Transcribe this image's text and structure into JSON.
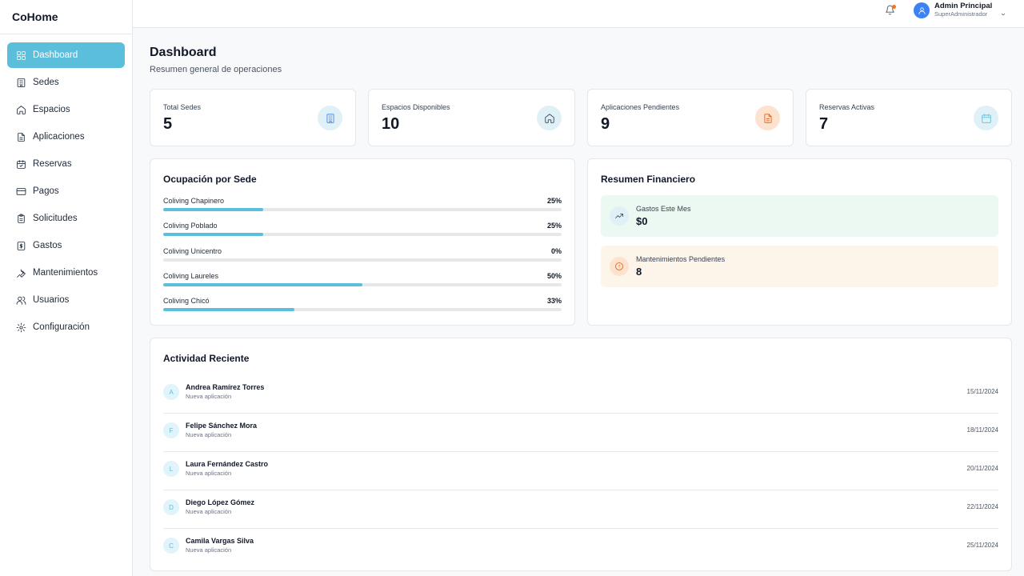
{
  "brand": "CoHome",
  "sidebar": {
    "items": [
      {
        "label": "Dashboard",
        "icon": "grid-icon",
        "active": true
      },
      {
        "label": "Sedes",
        "icon": "building-icon"
      },
      {
        "label": "Espacios",
        "icon": "home-icon"
      },
      {
        "label": "Aplicaciones",
        "icon": "file-text-icon"
      },
      {
        "label": "Reservas",
        "icon": "calendar-icon"
      },
      {
        "label": "Pagos",
        "icon": "credit-card-icon"
      },
      {
        "label": "Solicitudes",
        "icon": "clipboard-icon"
      },
      {
        "label": "Gastos",
        "icon": "receipt-icon"
      },
      {
        "label": "Mantenimientos",
        "icon": "wrench-icon"
      },
      {
        "label": "Usuarios",
        "icon": "users-icon"
      },
      {
        "label": "Configuración",
        "icon": "gear-icon"
      }
    ]
  },
  "header": {
    "user_name": "Admin Principal",
    "user_role": "SuperAdministrador",
    "notification_dot_color": "#f97316"
  },
  "page": {
    "title": "Dashboard",
    "subtitle": "Resumen general de operaciones"
  },
  "stats": [
    {
      "label": "Total Sedes",
      "value": "5",
      "icon": "building-icon",
      "color": "#3b82f6",
      "bg": "#dff1f7"
    },
    {
      "label": "Espacios Disponibles",
      "value": "10",
      "icon": "home-icon",
      "color": "#374151",
      "bg": "#dff1f7"
    },
    {
      "label": "Aplicaciones Pendientes",
      "value": "9",
      "icon": "file-text-icon",
      "color": "#ea580c",
      "bg": "#fde3cf"
    },
    {
      "label": "Reservas Activas",
      "value": "7",
      "icon": "calendar-icon",
      "color": "#5bbfdc",
      "bg": "#dff1f7"
    }
  ],
  "occupancy": {
    "title": "Ocupación por Sede",
    "items": [
      {
        "name": "Coliving Chapinero",
        "pct_label": "25%",
        "pct": 25
      },
      {
        "name": "Coliving Poblado",
        "pct_label": "25%",
        "pct": 25
      },
      {
        "name": "Coliving Unicentro",
        "pct_label": "0%",
        "pct": 0
      },
      {
        "name": "Coliving Laureles",
        "pct_label": "50%",
        "pct": 50
      },
      {
        "name": "Coliving Chicó",
        "pct_label": "33%",
        "pct": 33
      }
    ]
  },
  "finance": {
    "title": "Resumen Financiero",
    "items": [
      {
        "label": "Gastos Este Mes",
        "value": "$0",
        "icon": "trending-up-icon",
        "bg": "#ecf9f2",
        "icon_bg": "#dff1f7",
        "icon_color": "#374151"
      },
      {
        "label": "Mantenimientos Pendientes",
        "value": "8",
        "icon": "alert-circle-icon",
        "bg": "#fef5ea",
        "icon_bg": "#fde3cf",
        "icon_color": "#ea580c"
      }
    ]
  },
  "activity": {
    "title": "Actividad Reciente",
    "items": [
      {
        "initial": "A",
        "name": "Andrea Ramírez Torres",
        "desc": "Nueva aplicación",
        "date": "15/11/2024"
      },
      {
        "initial": "F",
        "name": "Felipe Sánchez Mora",
        "desc": "Nueva aplicación",
        "date": "18/11/2024"
      },
      {
        "initial": "L",
        "name": "Laura Fernández Castro",
        "desc": "Nueva aplicación",
        "date": "20/11/2024"
      },
      {
        "initial": "D",
        "name": "Diego López Gómez",
        "desc": "Nueva aplicación",
        "date": "22/11/2024"
      },
      {
        "initial": "C",
        "name": "Camila Vargas Silva",
        "desc": "Nueva aplicación",
        "date": "25/11/2024"
      }
    ]
  }
}
